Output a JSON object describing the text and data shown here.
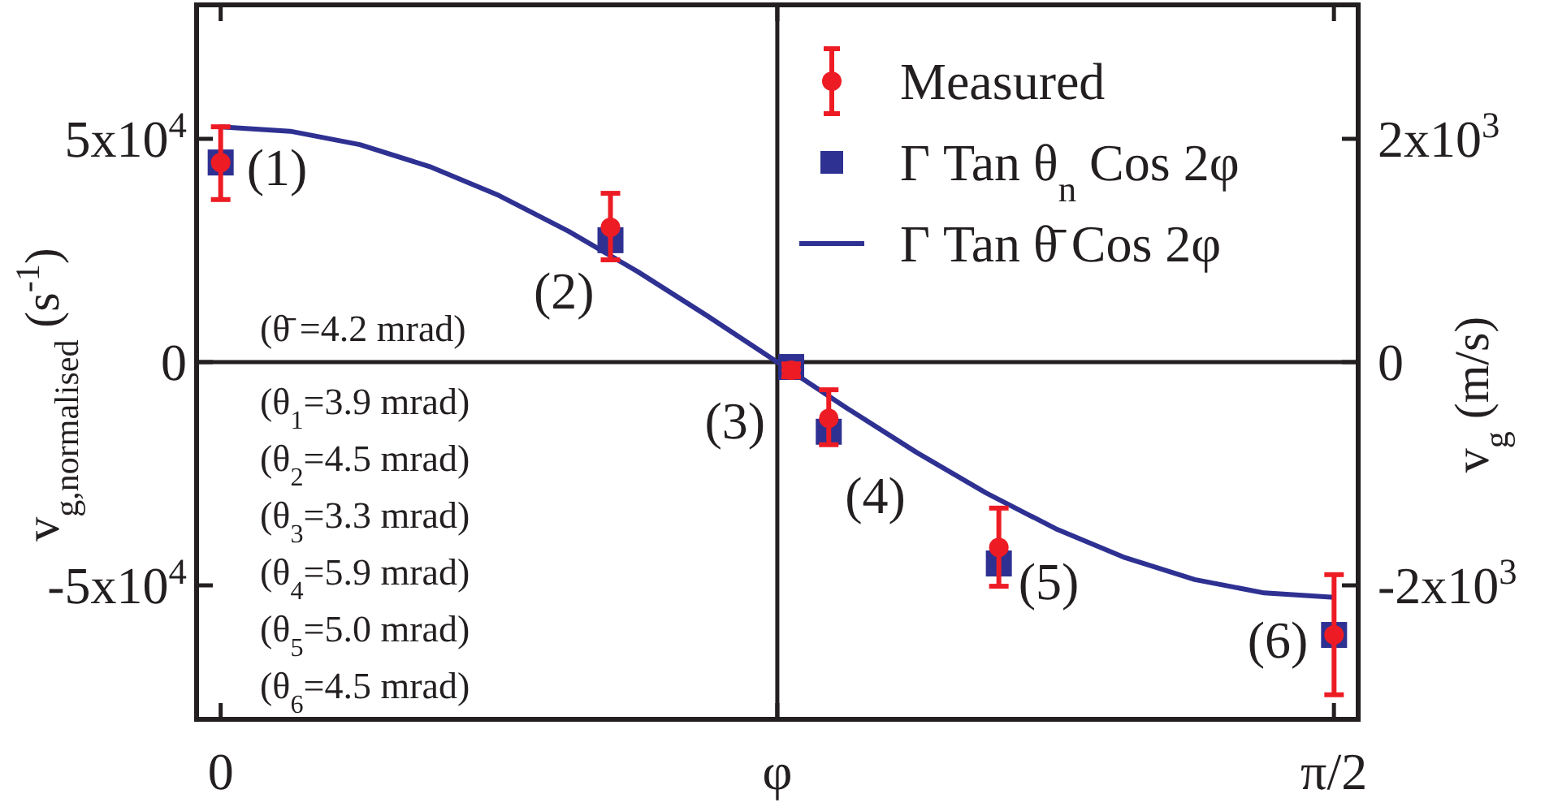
{
  "chart_data": {
    "type": "scatter",
    "xlim": [
      -0.034,
      1.605
    ],
    "xticks": [
      0,
      {
        "value": 0.7854,
        "label": "φ"
      },
      {
        "value": 1.5708,
        "label": "π/2"
      }
    ],
    "ylim": [
      -80000,
      80000
    ],
    "yticks": [
      {
        "value": 50000,
        "label": "5x10$^{4}$"
      },
      0,
      {
        "value": -50000,
        "label": "-5x10$^{4}$"
      }
    ],
    "y2lim": [
      -3200,
      3200
    ],
    "y2ticks": [
      {
        "value": 2000,
        "label": "2x10$^{3}$"
      },
      0,
      {
        "value": -2000,
        "label": "-2x10$^{3}$"
      }
    ],
    "ylabel": "v$_{g,normalised}$ (s$^{-1}$)",
    "y2label": "v$_{g}$ (m/s)",
    "grid": false,
    "legend": "top right",
    "series": [
      {
        "name": "Γ Tan θ̄ Cos 2φ",
        "type": "line",
        "color": "#2e3192",
        "marker": "none",
        "line_style": "solid",
        "x": [
          0,
          0.0982,
          0.1963,
          0.2945,
          0.3927,
          0.4909,
          0.589,
          0.6872,
          0.7854,
          0.8836,
          0.9817,
          1.0799,
          1.1781,
          1.2763,
          1.3744,
          1.4726,
          1.5708
        ],
        "values": [
          52700,
          51700,
          48700,
          43800,
          37300,
          29300,
          20200,
          10300,
          0,
          -10300,
          -20200,
          -29300,
          -37300,
          -43800,
          -48700,
          -51700,
          -52700
        ]
      },
      {
        "name": "Γ Tan θ$_{n}$ Cos 2φ",
        "color": "#2e3192",
        "marker": "square",
        "x": [
          0,
          0.55,
          0.805,
          0.858,
          1.098,
          1.571
        ],
        "values": [
          44700,
          27300,
          -1100,
          -15600,
          -45100,
          -61100
        ]
      },
      {
        "name": "Measured",
        "color": "#ed1c24",
        "marker": "circle",
        "x": [
          0,
          0.55,
          0.805,
          0.858,
          1.098,
          1.571
        ],
        "values": [
          44700,
          30200,
          -1800,
          -12600,
          -41500,
          -61100
        ],
        "errors": [
          [
            36400,
            52700
          ],
          [
            22900,
            37800
          ],
          [
            -3300,
            -400
          ],
          [
            -18500,
            -6200
          ],
          [
            -50200,
            -32700
          ],
          [
            -74500,
            -47600
          ]
        ]
      }
    ],
    "ref_lines": [
      {
        "axis": "x",
        "value": 0.7854,
        "color": "#231f20",
        "line_style": "solid"
      },
      {
        "axis": "y",
        "value": 0,
        "color": "#231f20",
        "line_style": "solid"
      }
    ],
    "annotations": [
      {
        "text": "(1)",
        "x": 0,
        "y": 44700
      },
      {
        "text": "(2)",
        "x": 0.55,
        "y": 27300
      },
      {
        "text": "(3)",
        "x": 0.805,
        "y": -1100
      },
      {
        "text": "(4)",
        "x": 0.858,
        "y": -15600
      },
      {
        "text": "(5)",
        "x": 1.098,
        "y": -45100
      },
      {
        "text": "(6)",
        "x": 1.571,
        "y": -61100
      },
      "(θ̄ =4.2 mrad)",
      "(θ$_{1}$=3.9 mrad)",
      "(θ$_{2}$=4.5 mrad)",
      "(θ$_{3}$=3.3 mrad)",
      "(θ$_{4}$=5.9 mrad)",
      "(θ$_{5}$=5.0 mrad)",
      "(θ$_{6}$=4.5 mrad)"
    ]
  }
}
